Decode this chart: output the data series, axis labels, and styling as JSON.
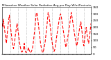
{
  "title": "Milwaukee Weather Solar Radiation Avg per Day W/m2/minute",
  "line_color": "#ff0000",
  "line_style": "--",
  "line_width": 0.8,
  "bg_color": "#ffffff",
  "grid_color": "#999999",
  "grid_style": ":",
  "ylim": [
    0,
    350
  ],
  "yticks": [
    0,
    50,
    100,
    150,
    200,
    250,
    300,
    350
  ],
  "values": [
    230,
    200,
    260,
    220,
    180,
    150,
    110,
    80,
    130,
    180,
    220,
    260,
    290,
    240,
    200,
    160,
    120,
    90,
    60,
    40,
    70,
    100,
    140,
    170,
    200,
    230,
    190,
    160,
    120,
    90,
    60,
    40,
    20,
    15,
    20,
    30,
    50,
    80,
    30,
    20,
    10,
    15,
    20,
    30,
    50,
    30,
    20,
    10,
    15,
    20,
    30,
    50,
    80,
    120,
    160,
    200,
    250,
    300,
    310,
    290,
    250,
    210,
    170,
    130,
    90,
    60,
    40,
    20,
    10,
    20,
    40,
    60,
    90,
    130,
    170,
    210,
    260,
    310,
    300,
    270,
    230,
    190,
    150,
    110,
    80,
    50,
    30,
    20,
    30,
    50,
    80,
    120,
    150,
    180,
    210,
    240,
    270,
    290,
    300,
    280,
    250,
    220,
    190,
    160,
    130,
    100,
    70,
    50,
    70,
    100,
    130,
    150,
    180,
    210,
    250,
    290,
    310,
    280,
    250,
    220,
    190,
    160,
    130,
    100,
    80,
    60,
    80,
    110,
    140,
    170,
    200,
    220,
    240,
    200,
    160,
    120,
    80,
    60,
    100,
    140,
    170,
    200,
    160,
    130,
    100,
    80,
    110,
    150,
    190,
    230
  ],
  "vgrid_positions": [
    14,
    27,
    41,
    55,
    69,
    83,
    97,
    110,
    124,
    137
  ],
  "title_fontsize": 3.0,
  "tick_fontsize": 2.8,
  "ytick_fontsize": 3.2
}
